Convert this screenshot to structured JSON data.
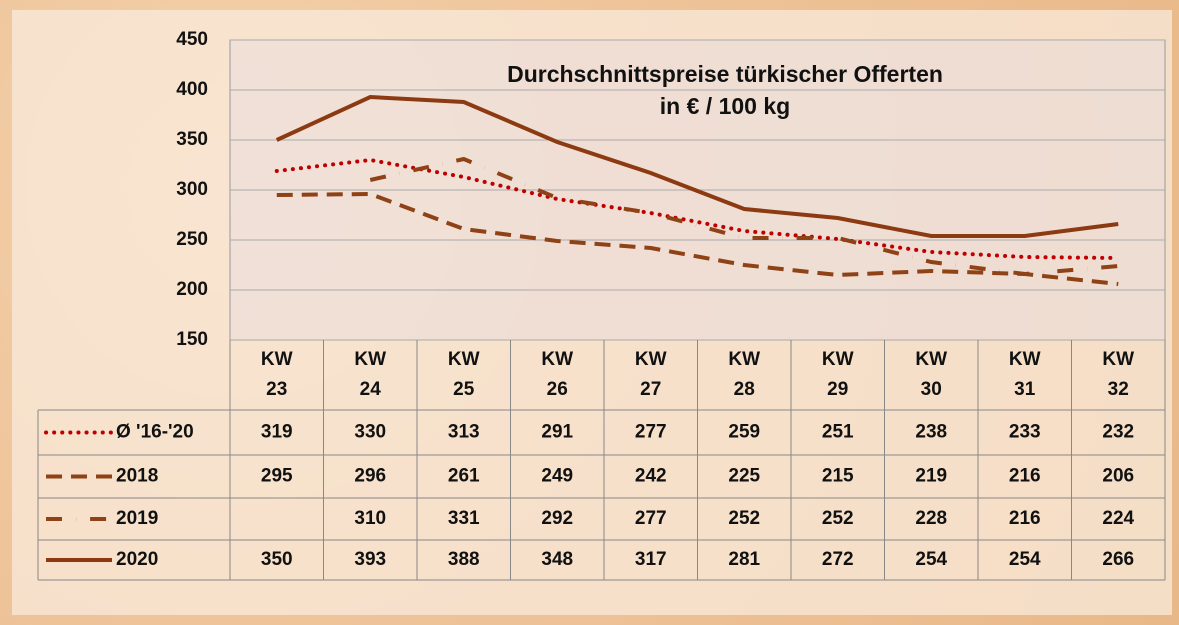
{
  "chart_data": {
    "type": "line",
    "title": "Durchschnittspreise türkischer Offerten",
    "subtitle": "in € / 100 kg",
    "categories": [
      "KW\n23",
      "KW\n24",
      "KW\n25",
      "KW\n26",
      "KW\n27",
      "KW\n28",
      "KW\n29",
      "KW\n30",
      "KW\n31",
      "KW\n32"
    ],
    "series": [
      {
        "name": "Ø '16-'20",
        "color": "#c00000",
        "line_style": "dotted",
        "values": [
          319,
          330,
          313,
          291,
          277,
          259,
          251,
          238,
          233,
          232
        ]
      },
      {
        "name": "2018",
        "color": "#8e4216",
        "line_style": "dashed",
        "values": [
          295,
          296,
          261,
          249,
          242,
          225,
          215,
          219,
          216,
          206
        ]
      },
      {
        "name": "2019",
        "color": "#8e4216",
        "line_style": "dashdot",
        "values": [
          null,
          310,
          331,
          292,
          277,
          252,
          252,
          228,
          216,
          224
        ]
      },
      {
        "name": "2020",
        "color": "#8b3a12",
        "line_style": "solid",
        "values": [
          350,
          393,
          388,
          348,
          317,
          281,
          272,
          254,
          254,
          266
        ]
      }
    ],
    "ylim": [
      150,
      450
    ],
    "yticks": [
      150,
      200,
      250,
      300,
      350,
      400,
      450
    ],
    "grid": true
  }
}
